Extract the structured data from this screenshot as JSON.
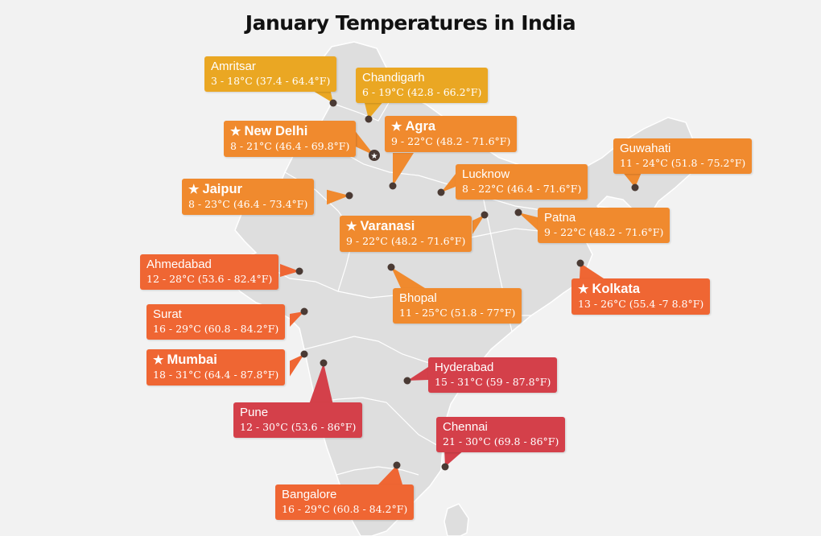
{
  "title": "January Temperatures in India",
  "colors": {
    "land": "#dedede",
    "border": "#ffffff",
    "dot": "#4a3a34",
    "yellow": "#eaa723",
    "orange": "#f08a2e",
    "red_orange": "#ef6633",
    "red": "#d4404a"
  },
  "capital_marker_icon": "star-icon",
  "cities": [
    {
      "id": "amritsar",
      "name": "Amritsar",
      "range": "3 - 18°C (37.4 - 64.4°F)",
      "capital": false,
      "color": "#eaa723"
    },
    {
      "id": "chandigarh",
      "name": "Chandigarh",
      "range": "6 - 19°C (42.8 - 66.2°F)",
      "capital": false,
      "color": "#eaa723"
    },
    {
      "id": "new-delhi",
      "name": "New Delhi",
      "range": "8 - 21°C (46.4 - 69.8°F)",
      "capital": true,
      "color": "#f08a2e"
    },
    {
      "id": "agra",
      "name": "Agra",
      "range": "9 - 22°C (48.2 - 71.6°F)",
      "capital": true,
      "color": "#f08a2e"
    },
    {
      "id": "jaipur",
      "name": "Jaipur",
      "range": "8 - 23°C (46.4 - 73.4°F)",
      "capital": true,
      "color": "#f08a2e"
    },
    {
      "id": "lucknow",
      "name": "Lucknow",
      "range": "8 - 22°C (46.4 - 71.6°F)",
      "capital": false,
      "color": "#f08a2e"
    },
    {
      "id": "guwahati",
      "name": "Guwahati",
      "range": "11 - 24°C (51.8 - 75.2°F)",
      "capital": false,
      "color": "#f08a2e"
    },
    {
      "id": "varanasi",
      "name": "Varanasi",
      "range": "9 - 22°C (48.2 - 71.6°F)",
      "capital": true,
      "color": "#f08a2e"
    },
    {
      "id": "patna",
      "name": "Patna",
      "range": "9 - 22°C (48.2 - 71.6°F)",
      "capital": false,
      "color": "#f08a2e"
    },
    {
      "id": "ahmedabad",
      "name": "Ahmedabad",
      "range": "12 - 28°C (53.6 - 82.4°F)",
      "capital": false,
      "color": "#ef6633"
    },
    {
      "id": "bhopal",
      "name": "Bhopal",
      "range": "11 - 25°C (51.8 - 77°F)",
      "capital": false,
      "color": "#f08a2e"
    },
    {
      "id": "kolkata",
      "name": "Kolkata",
      "range": "13 - 26°C (55.4 -7 8.8°F)",
      "capital": true,
      "color": "#ef6633"
    },
    {
      "id": "surat",
      "name": "Surat",
      "range": "16 - 29°C (60.8 - 84.2°F)",
      "capital": false,
      "color": "#ef6633"
    },
    {
      "id": "mumbai",
      "name": "Mumbai",
      "range": "18 - 31°C (64.4 - 87.8°F)",
      "capital": true,
      "color": "#ef6633"
    },
    {
      "id": "hyderabad",
      "name": "Hyderabad",
      "range": "15 - 31°C (59 - 87.8°F)",
      "capital": false,
      "color": "#d4404a"
    },
    {
      "id": "pune",
      "name": "Pune",
      "range": "12 - 30°C (53.6 - 86°F)",
      "capital": false,
      "color": "#d4404a"
    },
    {
      "id": "chennai",
      "name": "Chennai",
      "range": "21 - 30°C (69.8 - 86°F)",
      "capital": false,
      "color": "#d4404a"
    },
    {
      "id": "bangalore",
      "name": "Bangalore",
      "range": "16 - 29°C (60.8 - 84.2°F)",
      "capital": false,
      "color": "#ef6633"
    }
  ]
}
